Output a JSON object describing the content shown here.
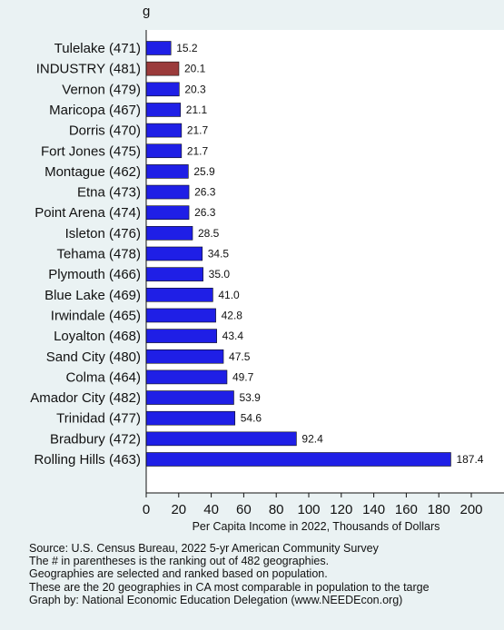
{
  "chart_data": {
    "type": "bar",
    "orientation": "horizontal",
    "title": "",
    "xlabel": "Per Capita Income in 2022, Thousands of Dollars",
    "xlim": [
      0,
      210
    ],
    "xticks": [
      0,
      20,
      40,
      60,
      80,
      100,
      120,
      140,
      160,
      180,
      200
    ],
    "categories": [
      "Tulelake (471)",
      "INDUSTRY (481)",
      "Vernon (479)",
      "Maricopa (467)",
      "Dorris (470)",
      "Fort Jones (475)",
      "Montague (462)",
      "Etna (473)",
      "Point Arena (474)",
      "Isleton (476)",
      "Tehama (478)",
      "Plymouth (466)",
      "Blue Lake (469)",
      "Irwindale (465)",
      "Loyalton (468)",
      "Sand City (480)",
      "Colma (464)",
      "Amador City (482)",
      "Trinidad (477)",
      "Bradbury (472)",
      "Rolling Hills (463)"
    ],
    "values": [
      15.2,
      20.1,
      20.3,
      21.1,
      21.7,
      21.7,
      25.9,
      26.3,
      26.3,
      28.5,
      34.5,
      35.0,
      41.0,
      42.8,
      43.4,
      47.5,
      49.7,
      53.9,
      54.6,
      92.4,
      187.4
    ],
    "value_labels": [
      "15.2",
      "20.1",
      "20.3",
      "21.1",
      "21.7",
      "21.7",
      "25.9",
      "26.3",
      "26.3",
      "28.5",
      "34.5",
      "35.0",
      "41.0",
      "42.8",
      "43.4",
      "47.5",
      "49.7",
      "53.9",
      "54.6",
      "92.4",
      "187.4"
    ],
    "highlight_index": 1,
    "bar_color": "#1f1fe6",
    "highlight_color": "#9b3b3b",
    "plot_background": "#ffffff",
    "page_background": "#eaf2f3",
    "grid": false
  },
  "header_fragment": "g",
  "footnotes": [
    "Source: U.S. Census Bureau, 2022 5-yr American Community Survey",
    "The # in parentheses is the ranking out of 482 geographies.",
    "Geographies are selected and ranked based on population.",
    "These are the 20 geographies in CA most comparable in population to the targe",
    "Graph by: National Economic Education Delegation (www.NEEDEcon.org)"
  ]
}
